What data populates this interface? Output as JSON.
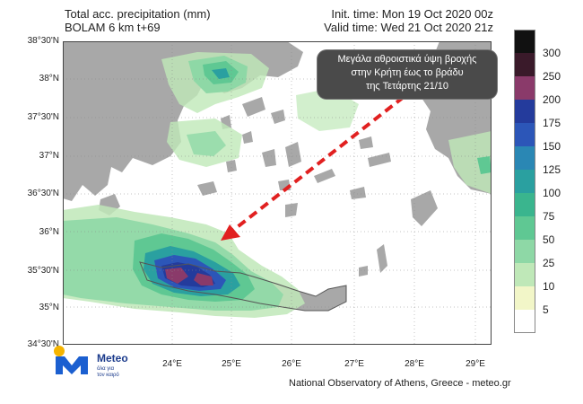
{
  "header": {
    "title_line1": "Total acc. precipitation (mm)",
    "title_line2": "BOLAM 6 km t+69",
    "init_time": "Init. time: Mon 19 Oct 2020 00z",
    "valid_time": "Valid time: Wed 21 Oct 2020 21z"
  },
  "map": {
    "lat_labels": [
      "38°30'N",
      "38°N",
      "37°30'N",
      "37°N",
      "36°30'N",
      "36°N",
      "35°30'N",
      "35°N",
      "34°30'N"
    ],
    "lon_labels": [
      "24°E",
      "25°E",
      "26°E",
      "27°E",
      "28°E",
      "29°E"
    ],
    "annotation": {
      "line1": "Μεγάλα αθροιστικά ύψη βροχής",
      "line2": "στην Κρήτη έως το βράδυ",
      "line3": "της Τετάρτης 21/10"
    },
    "colors": {
      "land": "#a8a8a8",
      "sea": "#ffffff",
      "arrow": "#e12020"
    }
  },
  "colorbar": {
    "levels": [
      "300",
      "250",
      "200",
      "175",
      "150",
      "125",
      "100",
      "75",
      "50",
      "25",
      "10",
      "5"
    ],
    "colors": [
      "#111111",
      "#3a1a2a",
      "#8a3a6a",
      "#243b9c",
      "#2c56b8",
      "#2a87b4",
      "#2aa0a0",
      "#3ab58e",
      "#5fc893",
      "#8ed8a6",
      "#bfe8b8",
      "#f2f6c8",
      "#ffffff"
    ]
  },
  "logo": {
    "name": "Meteo",
    "tagline_1": "όλα για",
    "tagline_2": "τον καιρό"
  },
  "footer": {
    "credit": "National Observatory of Athens, Greece - meteo.gr"
  }
}
